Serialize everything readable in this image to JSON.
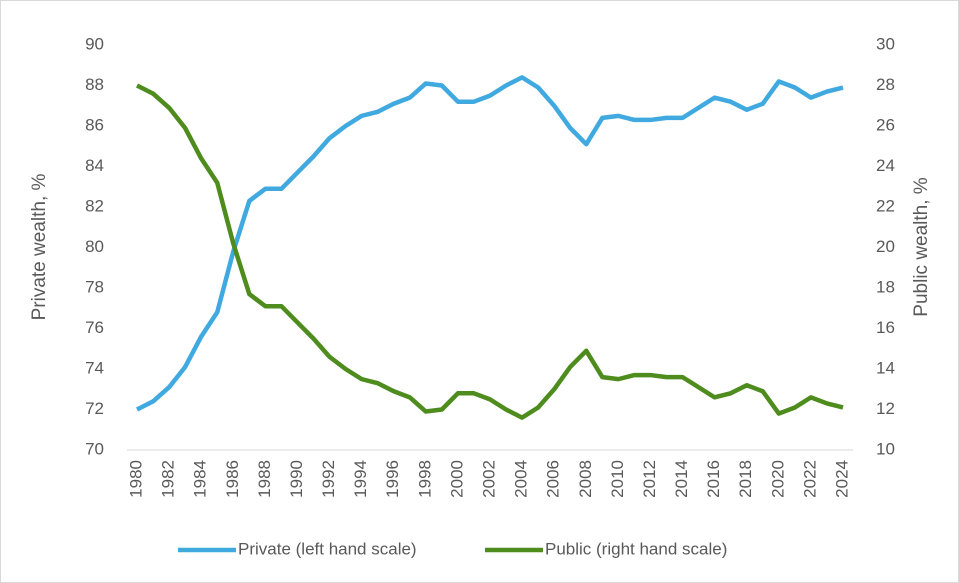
{
  "chart_data": {
    "type": "line",
    "x": [
      1980,
      1981,
      1982,
      1983,
      1984,
      1985,
      1986,
      1987,
      1988,
      1989,
      1990,
      1991,
      1992,
      1993,
      1994,
      1995,
      1996,
      1997,
      1998,
      1999,
      2000,
      2001,
      2002,
      2003,
      2004,
      2005,
      2006,
      2007,
      2008,
      2009,
      2010,
      2011,
      2012,
      2013,
      2014,
      2015,
      2016,
      2017,
      2018,
      2019,
      2020,
      2021,
      2022,
      2023,
      2024
    ],
    "xlim": [
      1980,
      2024
    ],
    "xticks": [
      1980,
      1982,
      1984,
      1986,
      1988,
      1990,
      1992,
      1994,
      1996,
      1998,
      2000,
      2002,
      2004,
      2006,
      2008,
      2010,
      2012,
      2014,
      2016,
      2018,
      2020,
      2022,
      2024
    ],
    "ylabel": "Private wealth, %",
    "y2label": "Public wealth, %",
    "ylim": [
      70,
      90
    ],
    "yticks": [
      70,
      72,
      74,
      76,
      78,
      80,
      82,
      84,
      86,
      88,
      90
    ],
    "y2lim": [
      10,
      30
    ],
    "y2ticks": [
      10,
      12,
      14,
      16,
      18,
      20,
      22,
      24,
      26,
      28,
      30
    ],
    "grid": false,
    "legend": "bottom",
    "series": [
      {
        "name": "Private (left hand scale)",
        "color": "#3fa9e0",
        "values": [
          72.0,
          72.4,
          73.1,
          74.1,
          75.6,
          76.8,
          79.8,
          82.3,
          82.9,
          82.9,
          83.7,
          84.5,
          85.4,
          86.0,
          86.5,
          86.7,
          87.1,
          87.4,
          88.1,
          88.0,
          87.2,
          87.2,
          87.5,
          88.0,
          88.4,
          87.9,
          87.0,
          85.9,
          85.1,
          86.4,
          86.5,
          86.3,
          86.3,
          86.4,
          86.4,
          86.9,
          87.4,
          87.2,
          86.8,
          87.1,
          88.2,
          87.9,
          87.4,
          87.7,
          87.9
        ]
      },
      {
        "name": "Public (right hand scale)",
        "color": "#4e8c1e",
        "axis": "y2",
        "values": [
          28.0,
          27.6,
          26.9,
          25.9,
          24.4,
          23.2,
          20.2,
          17.7,
          17.1,
          17.1,
          16.3,
          15.5,
          14.6,
          14.0,
          13.5,
          13.3,
          12.9,
          12.6,
          11.9,
          12.0,
          12.8,
          12.8,
          12.5,
          12.0,
          11.6,
          12.1,
          13.0,
          14.1,
          14.9,
          13.6,
          13.5,
          13.7,
          13.7,
          13.6,
          13.6,
          13.1,
          12.6,
          12.8,
          13.2,
          12.9,
          11.8,
          12.1,
          12.6,
          12.3,
          12.1
        ]
      }
    ]
  }
}
